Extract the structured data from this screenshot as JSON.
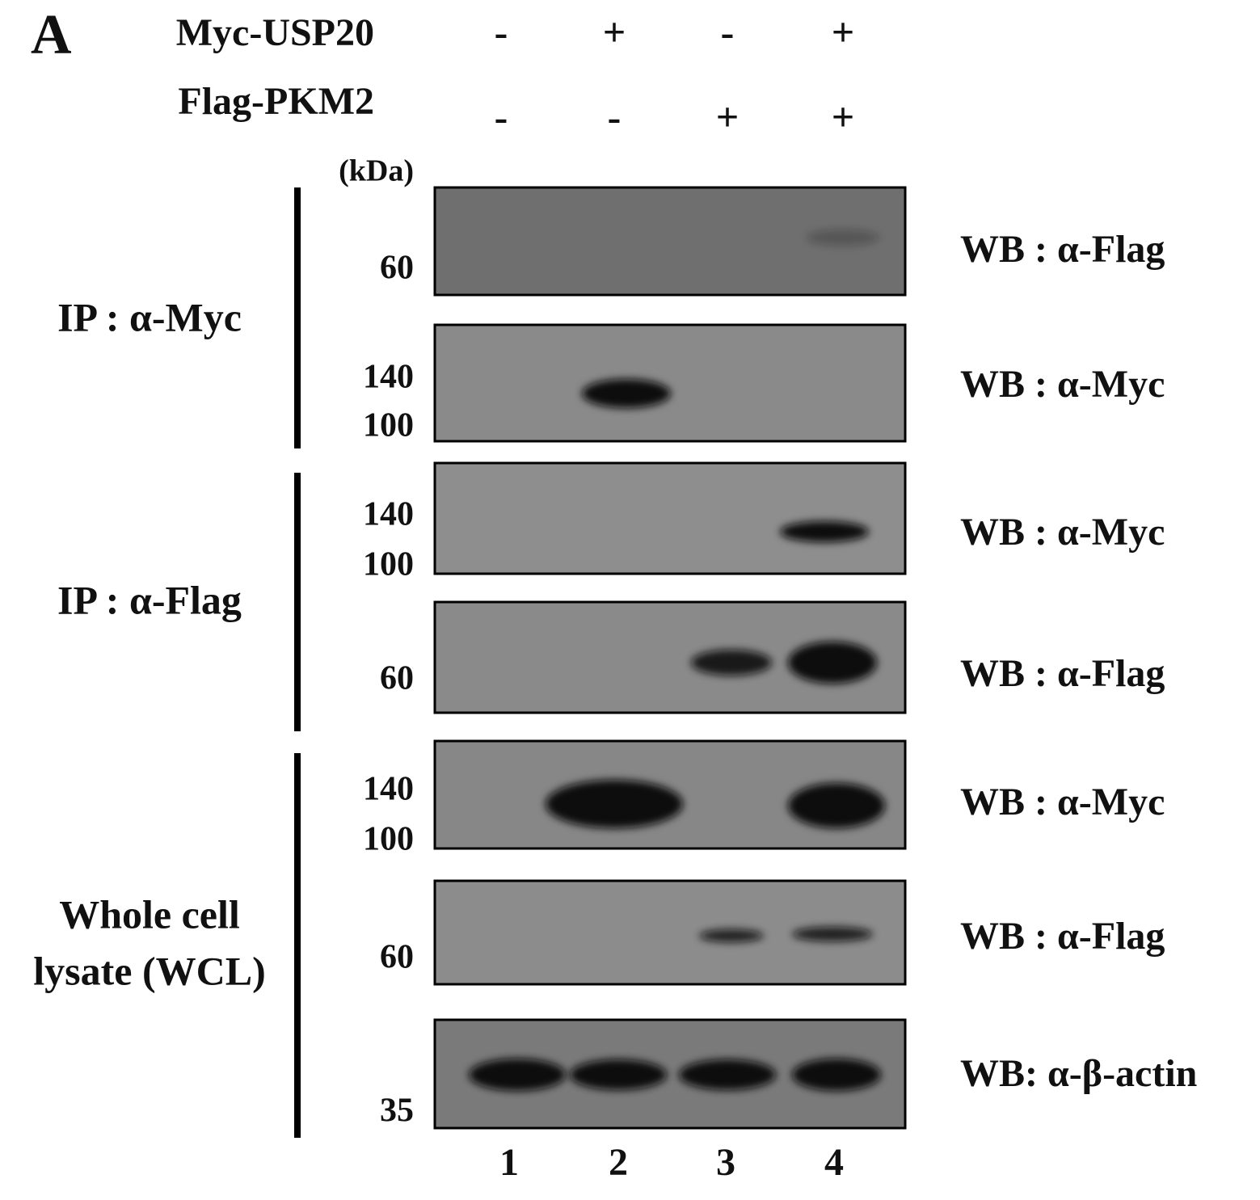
{
  "panel_label": "A",
  "conditions": [
    {
      "label": "Myc-USP20",
      "signs": [
        "-",
        "+",
        "-",
        "+"
      ]
    },
    {
      "label": "Flag-PKM2",
      "signs": [
        "-",
        "-",
        "+",
        "+"
      ]
    }
  ],
  "kda_label": "(kDa)",
  "groups": [
    {
      "label": [
        "IP : α-Myc"
      ],
      "blots": [
        {
          "markers": [
            "60"
          ],
          "antibody": "WB : α-Flag"
        },
        {
          "markers": [
            "140",
            "100"
          ],
          "antibody": "WB : α-Myc"
        }
      ]
    },
    {
      "label": [
        "IP : α-Flag"
      ],
      "blots": [
        {
          "markers": [
            "140",
            "100"
          ],
          "antibody": "WB : α-Myc"
        },
        {
          "markers": [
            "60"
          ],
          "antibody": "WB : α-Flag"
        }
      ]
    },
    {
      "label": [
        "Whole cell",
        "lysate (WCL)"
      ],
      "blots": [
        {
          "markers": [
            "140",
            "100"
          ],
          "antibody": "WB : α-Myc"
        },
        {
          "markers": [
            "60"
          ],
          "antibody": "WB : α-Flag"
        },
        {
          "markers": [
            "35"
          ],
          "antibody": "WB: α-β-actin"
        }
      ]
    }
  ],
  "lanes": [
    "1",
    "2",
    "3",
    "4"
  ]
}
